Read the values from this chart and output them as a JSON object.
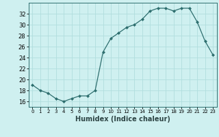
{
  "x": [
    0,
    1,
    2,
    3,
    4,
    5,
    6,
    7,
    8,
    9,
    10,
    11,
    12,
    13,
    14,
    15,
    16,
    17,
    18,
    19,
    20,
    21,
    22,
    23
  ],
  "y": [
    19.0,
    18.0,
    17.5,
    16.5,
    16.0,
    16.5,
    17.0,
    17.0,
    18.0,
    25.0,
    27.5,
    28.5,
    29.5,
    30.0,
    31.0,
    32.5,
    33.0,
    33.0,
    32.5,
    33.0,
    33.0,
    30.5,
    27.0,
    24.5
  ],
  "xlabel": "Humidex (Indice chaleur)",
  "ylim": [
    15,
    34
  ],
  "xlim": [
    -0.5,
    23.5
  ],
  "yticks": [
    16,
    18,
    20,
    22,
    24,
    26,
    28,
    30,
    32
  ],
  "xtick_labels": [
    "0",
    "1",
    "2",
    "3",
    "4",
    "5",
    "6",
    "7",
    "8",
    "9",
    "10",
    "11",
    "12",
    "13",
    "14",
    "15",
    "16",
    "17",
    "18",
    "19",
    "20",
    "21",
    "22",
    "23"
  ],
  "line_color": "#2d6e6e",
  "marker": "D",
  "marker_size": 2.0,
  "bg_color": "#cff0f0",
  "grid_color": "#b0dede",
  "xlabel_fontsize": 7,
  "ytick_fontsize": 6,
  "xtick_fontsize": 5
}
